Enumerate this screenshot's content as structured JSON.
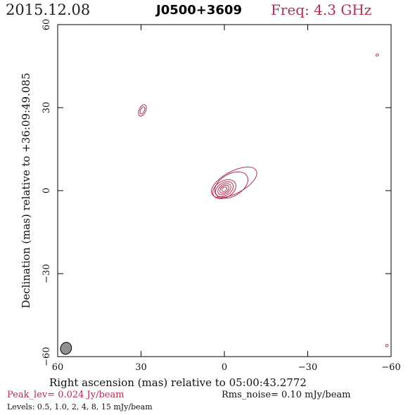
{
  "header": {
    "date": "2015.12.08",
    "source": "J0500+3609",
    "freq": "Freq: 4.3 GHz"
  },
  "chart_data": {
    "type": "contour",
    "xlabel": "Right ascension (mas) relative to 05:00:43.2772",
    "ylabel": "Declination (mas) relative to +36:09:49.085",
    "xlim": [
      60,
      -60
    ],
    "ylim": [
      -60,
      60
    ],
    "xticks": [
      60,
      30,
      0,
      -30,
      -60
    ],
    "yticks": [
      -60,
      -30,
      0,
      30,
      60
    ],
    "x_tick_labels": [
      "60",
      "30",
      "0",
      "−30",
      "−60"
    ],
    "y_tick_labels": [
      "−60",
      "−30",
      "0",
      "30",
      "60"
    ],
    "contour_color": "#b03050",
    "components": [
      {
        "name": "core",
        "x": 0.0,
        "y": 0.5,
        "contours": [
          {
            "dx": 4.5,
            "dy": 3.0,
            "ang": 30
          },
          {
            "dx": 3.5,
            "dy": 2.3,
            "ang": 32
          },
          {
            "dx": 2.6,
            "dy": 1.7,
            "ang": 35
          },
          {
            "dx": 1.8,
            "dy": 1.2,
            "ang": 38
          },
          {
            "dx": 1.0,
            "dy": 0.7,
            "ang": 40
          }
        ]
      },
      {
        "name": "jet",
        "x": -3.5,
        "y": 3.0,
        "contours": [
          {
            "dx": 9.0,
            "dy": 4.0,
            "ang": 28
          }
        ]
      },
      {
        "name": "outer",
        "x": -2.5,
        "y": 2.0,
        "contours": [
          {
            "dx": 6.5,
            "dy": 4.0,
            "ang": 30
          }
        ]
      },
      {
        "name": "blob-nw",
        "x": 29.5,
        "y": 29.0,
        "contours": [
          {
            "dx": 2.2,
            "dy": 1.2,
            "ang": 65
          },
          {
            "dx": 1.4,
            "dy": 0.7,
            "ang": 65
          }
        ]
      },
      {
        "name": "blob-ne",
        "x": -55.0,
        "y": 49.0,
        "contours": [
          {
            "dx": 0.5,
            "dy": 0.4,
            "ang": 30
          }
        ]
      },
      {
        "name": "blob-se",
        "x": -58.5,
        "y": -56.0,
        "contours": [
          {
            "dx": 0.5,
            "dy": 0.4,
            "ang": 30
          }
        ]
      }
    ],
    "beam": {
      "x": 57.0,
      "y": -57.0,
      "major": 2.2,
      "minor": 1.4,
      "ang": 70,
      "fill": "#909090"
    }
  },
  "footer": {
    "peak": "Peak_lev=  0.024 Jy/beam",
    "rms": "Rms_noise= 0.10 mJy/beam",
    "levels": "Levels: 0.5, 1.0,    2,    4,    8,   15 mJy/beam"
  }
}
